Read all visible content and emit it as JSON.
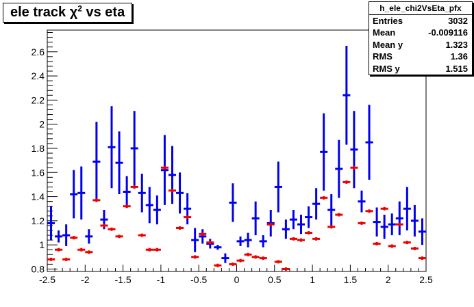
{
  "title": {
    "main": "ele track χ",
    "sup": "2",
    "rest": " vs eta"
  },
  "stats": {
    "name": "h_ele_chi2VsEta_pfx",
    "rows": [
      {
        "label": "Entries",
        "value": "3032"
      },
      {
        "label": "Mean",
        "value": "-0.009116"
      },
      {
        "label": "Mean y",
        "value": "1.323"
      },
      {
        "label": "RMS",
        "value": "1.36"
      },
      {
        "label": "RMS y",
        "value": "1.515"
      }
    ]
  },
  "chart_data": {
    "type": "scatter",
    "xlim": [
      -2.5,
      2.5
    ],
    "ylim": [
      0.78,
      2.78
    ],
    "x_ticks": [
      "-2.5",
      "-2",
      "-1.5",
      "-1",
      "-0.5",
      "0",
      "0.5",
      "1",
      "1.5",
      "2",
      "2.5"
    ],
    "y_ticks": [
      "0.8",
      "1",
      "1.2",
      "1.4",
      "1.6",
      "1.8",
      "2",
      "2.2",
      "2.4",
      "2.6"
    ],
    "bin_half_width": 0.05,
    "colors": {
      "blue": "#0000ee",
      "red": "#ee0000"
    },
    "series": [
      {
        "color": "blue",
        "x": [
          -2.45,
          -2.35,
          -2.25,
          -2.15,
          -2.05,
          -1.95,
          -1.85,
          -1.75,
          -1.65,
          -1.55,
          -1.45,
          -1.35,
          -1.25,
          -1.15,
          -1.05,
          -0.95,
          -0.85,
          -0.75,
          -0.65,
          -0.55,
          -0.45,
          -0.35,
          -0.25,
          -0.15,
          -0.05,
          0.05,
          0.15,
          0.25,
          0.35,
          0.45,
          0.55,
          0.65,
          0.75,
          0.85,
          0.95,
          1.05,
          1.15,
          1.25,
          1.35,
          1.45,
          1.55,
          1.65,
          1.75,
          1.85,
          1.95,
          2.05,
          2.15,
          2.25,
          2.35,
          2.45
        ],
        "y": [
          1.18,
          1.07,
          1.08,
          1.42,
          1.43,
          1.07,
          1.69,
          1.21,
          1.81,
          1.68,
          1.44,
          1.8,
          1.43,
          1.33,
          1.29,
          1.62,
          1.58,
          1.43,
          1.3,
          1.04,
          1.07,
          1.01,
          0.98,
          0.89,
          1.35,
          1.03,
          1.04,
          1.22,
          1.03,
          1.18,
          1.48,
          1.13,
          1.21,
          1.17,
          1.23,
          1.34,
          1.77,
          1.29,
          1.63,
          2.24,
          1.79,
          1.36,
          1.85,
          1.19,
          1.15,
          1.17,
          1.22,
          1.3,
          1.2,
          1.11
        ],
        "err": [
          0.14,
          0.05,
          0.09,
          0.2,
          0.22,
          0.06,
          0.33,
          0.08,
          0.34,
          0.26,
          0.13,
          0.31,
          0.16,
          0.15,
          0.12,
          0.29,
          0.24,
          0.17,
          0.13,
          0.1,
          0.06,
          0.04,
          0.02,
          0.04,
          0.16,
          0.04,
          0.06,
          0.14,
          0.05,
          0.11,
          0.21,
          0.08,
          0.08,
          0.08,
          0.09,
          0.13,
          0.32,
          0.13,
          0.24,
          0.41,
          0.32,
          0.09,
          0.31,
          0.12,
          0.1,
          0.09,
          0.14,
          0.18,
          0.13,
          0.11
        ]
      },
      {
        "color": "red",
        "x": [
          -2.45,
          -2.35,
          -2.25,
          -2.15,
          -2.05,
          -1.95,
          -1.85,
          -1.75,
          -1.65,
          -1.55,
          -1.45,
          -1.35,
          -1.25,
          -1.15,
          -1.05,
          -0.95,
          -0.85,
          -0.75,
          -0.65,
          -0.55,
          -0.45,
          -0.35,
          -0.25,
          -0.15,
          -0.05,
          0.05,
          0.15,
          0.25,
          0.35,
          0.45,
          0.55,
          0.65,
          0.75,
          0.85,
          0.95,
          1.05,
          1.15,
          1.25,
          1.35,
          1.45,
          1.55,
          1.65,
          1.75,
          1.85,
          1.95,
          2.05,
          2.15,
          2.25,
          2.35,
          2.45
        ],
        "y": [
          0.88,
          0.96,
          0.88,
          1.06,
          0.96,
          0.94,
          1.37,
          1.16,
          1.13,
          1.07,
          1.32,
          1.48,
          1.08,
          0.96,
          0.96,
          1.64,
          1.45,
          1.14,
          1.23,
          0.9,
          1.09,
          1.02,
          0.83,
          0.77,
          0.84,
          0.87,
          0.92,
          0.9,
          0.89,
          1.17,
          0.86,
          0.8,
          1.05,
          1.04,
          1.1,
          1.05,
          1.39,
          1.15,
          1.25,
          1.52,
          1.64,
          1.18,
          1.28,
          1.01,
          1.3,
          0.99,
          1.17,
          1.02,
          0.97,
          0.89
        ]
      }
    ]
  }
}
